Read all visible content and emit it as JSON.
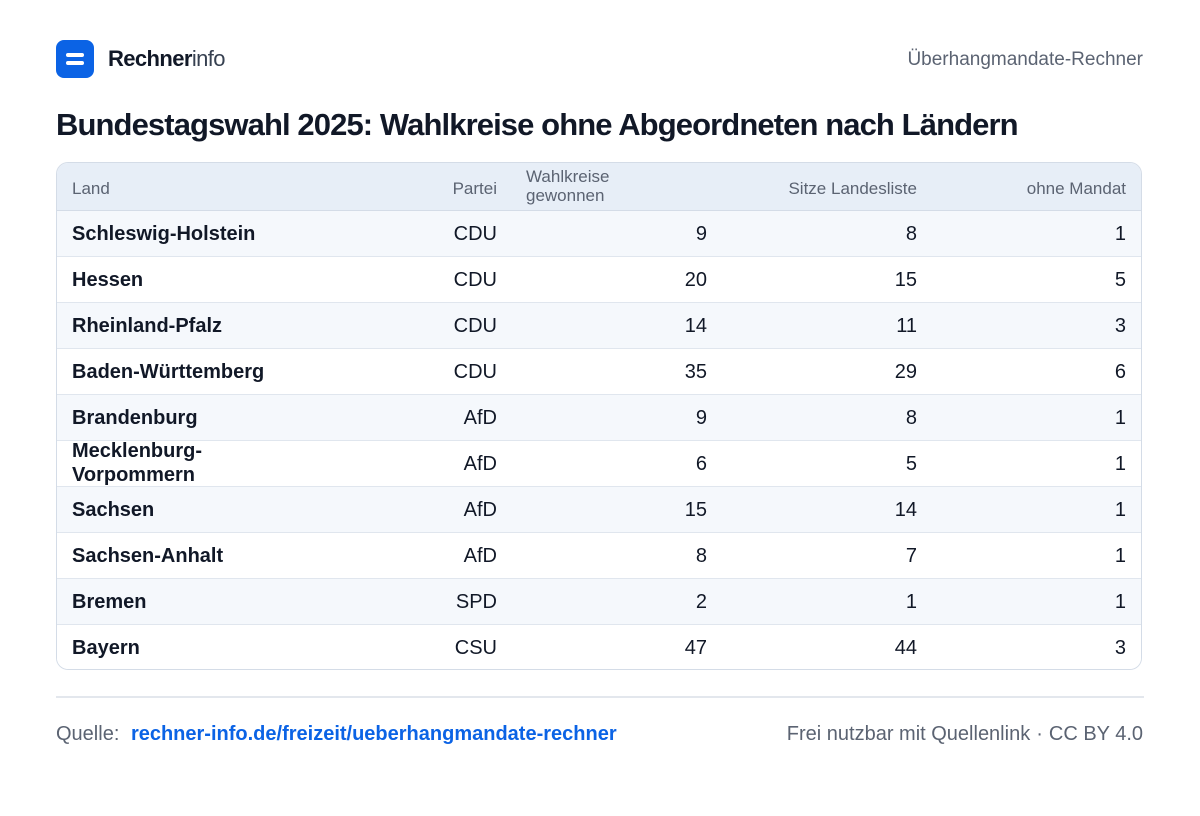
{
  "brand": {
    "strong": "Rechner",
    "light": "info"
  },
  "header": {
    "right_label": "Überhangmandate-Rechner"
  },
  "title": "Bundestagswahl 2025: Wahlkreise ohne Abgeordneten nach Ländern",
  "table": {
    "headers": {
      "land": "Land",
      "partei": "Partei",
      "wahlkreise": "Wahlkreise gewonnen",
      "sitze": "Sitze Landesliste",
      "ohne": "ohne Mandat"
    },
    "rows": [
      {
        "land": "Schleswig-Holstein",
        "partei": "CDU",
        "wahlkreise": "9",
        "sitze": "8",
        "ohne": "1"
      },
      {
        "land": "Hessen",
        "partei": "CDU",
        "wahlkreise": "20",
        "sitze": "15",
        "ohne": "5"
      },
      {
        "land": "Rheinland-Pfalz",
        "partei": "CDU",
        "wahlkreise": "14",
        "sitze": "11",
        "ohne": "3"
      },
      {
        "land": "Baden-Württemberg",
        "partei": "CDU",
        "wahlkreise": "35",
        "sitze": "29",
        "ohne": "6"
      },
      {
        "land": "Brandenburg",
        "partei": "AfD",
        "wahlkreise": "9",
        "sitze": "8",
        "ohne": "1"
      },
      {
        "land": "Mecklenburg-Vorpommern",
        "partei": "AfD",
        "wahlkreise": "6",
        "sitze": "5",
        "ohne": "1"
      },
      {
        "land": "Sachsen",
        "partei": "AfD",
        "wahlkreise": "15",
        "sitze": "14",
        "ohne": "1"
      },
      {
        "land": "Sachsen-Anhalt",
        "partei": "AfD",
        "wahlkreise": "8",
        "sitze": "7",
        "ohne": "1"
      },
      {
        "land": "Bremen",
        "partei": "SPD",
        "wahlkreise": "2",
        "sitze": "1",
        "ohne": "1"
      },
      {
        "land": "Bayern",
        "partei": "CSU",
        "wahlkreise": "47",
        "sitze": "44",
        "ohne": "3"
      }
    ]
  },
  "footer": {
    "source_label": "Quelle:",
    "source_link": "rechner-info.de/freizeit/ueberhangmandate-rechner",
    "license_text": "Frei nutzbar mit Quellenlink",
    "separator": "·",
    "license": "CC BY 4.0"
  },
  "colors": {
    "accent": "#0b63e5",
    "header_bg": "#e7eef7",
    "row_alt_bg": "#f5f8fc"
  }
}
